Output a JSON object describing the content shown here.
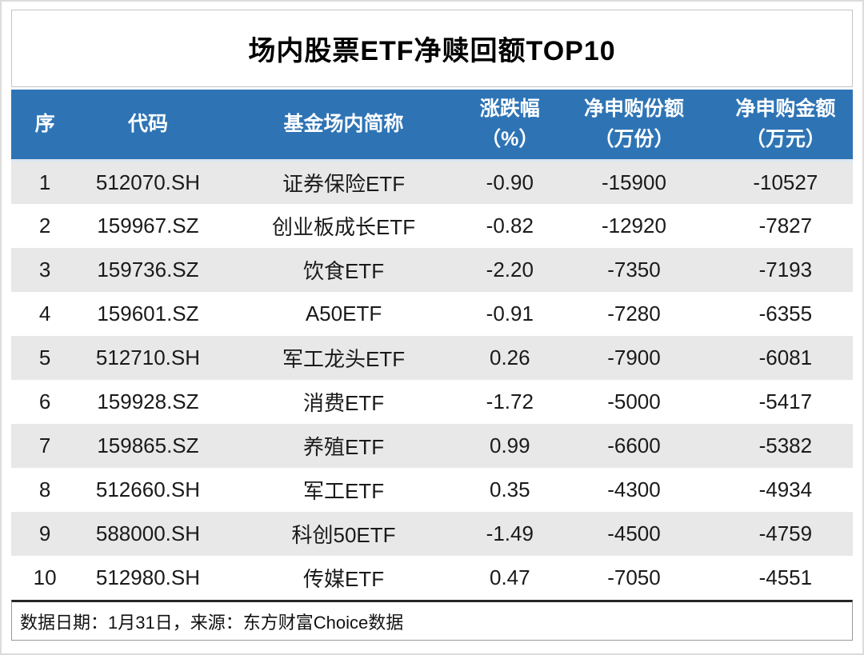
{
  "chart_data": {
    "type": "table",
    "title": "场内股票ETF净赎回额TOP10",
    "columns": [
      {
        "key": "rank",
        "label": "序"
      },
      {
        "key": "code",
        "label": "代码"
      },
      {
        "key": "name",
        "label": "基金场内简称"
      },
      {
        "key": "change_pct",
        "label": "涨跌幅",
        "label2": "（%）"
      },
      {
        "key": "net_shares",
        "label": "净申购份额",
        "label2": "（万份）"
      },
      {
        "key": "net_amount",
        "label": "净申购金额",
        "label2": "（万元）"
      }
    ],
    "rows": [
      {
        "rank": "1",
        "code": "512070.SH",
        "name": "证券保险ETF",
        "change_pct": "-0.90",
        "net_shares": "-15900",
        "net_amount": "-10527"
      },
      {
        "rank": "2",
        "code": "159967.SZ",
        "name": "创业板成长ETF",
        "change_pct": "-0.82",
        "net_shares": "-12920",
        "net_amount": "-7827"
      },
      {
        "rank": "3",
        "code": "159736.SZ",
        "name": "饮食ETF",
        "change_pct": "-2.20",
        "net_shares": "-7350",
        "net_amount": "-7193"
      },
      {
        "rank": "4",
        "code": "159601.SZ",
        "name": "A50ETF",
        "change_pct": "-0.91",
        "net_shares": "-7280",
        "net_amount": "-6355"
      },
      {
        "rank": "5",
        "code": "512710.SH",
        "name": "军工龙头ETF",
        "change_pct": "0.26",
        "net_shares": "-7900",
        "net_amount": "-6081"
      },
      {
        "rank": "6",
        "code": "159928.SZ",
        "name": "消费ETF",
        "change_pct": "-1.72",
        "net_shares": "-5000",
        "net_amount": "-5417"
      },
      {
        "rank": "7",
        "code": "159865.SZ",
        "name": "养殖ETF",
        "change_pct": "0.99",
        "net_shares": "-6600",
        "net_amount": "-5382"
      },
      {
        "rank": "8",
        "code": "512660.SH",
        "name": "军工ETF",
        "change_pct": "0.35",
        "net_shares": "-4300",
        "net_amount": "-4934"
      },
      {
        "rank": "9",
        "code": "588000.SH",
        "name": "科创50ETF",
        "change_pct": "-1.49",
        "net_shares": "-4500",
        "net_amount": "-4759"
      },
      {
        "rank": "10",
        "code": "512980.SH",
        "name": "传媒ETF",
        "change_pct": "0.47",
        "net_shares": "-7050",
        "net_amount": "-4551"
      }
    ]
  },
  "footer": {
    "note": "数据日期：1月31日，来源：东方财富Choice数据"
  },
  "colors": {
    "header_bg": "#2E74B5",
    "header_text": "#FFFFFF",
    "row_alt_bg": "#E8E8E8",
    "row_bg": "#FFFFFF",
    "footer_border_top": "#262626",
    "box_border": "#C4C4C4",
    "text": "#1A1A1A"
  }
}
